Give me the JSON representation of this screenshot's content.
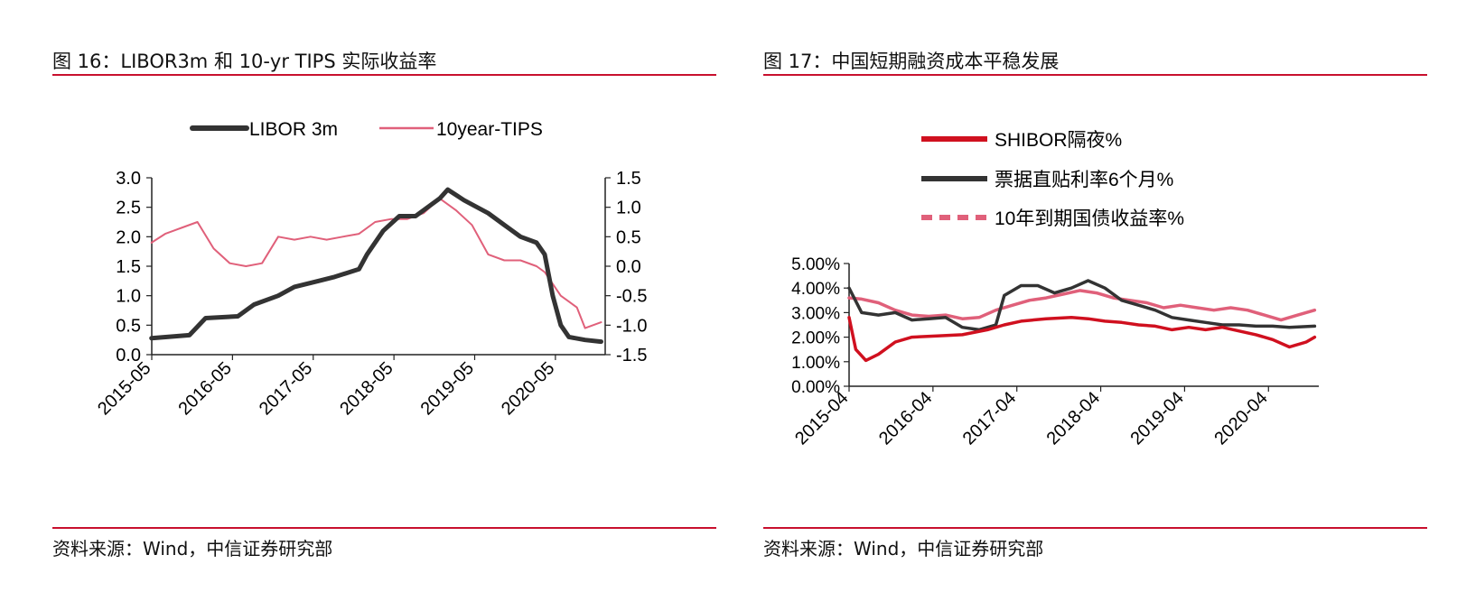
{
  "panels": [
    {
      "title": "图 16：LIBOR3m 和 10-yr TIPS 实际收益率",
      "source": "资料来源：Wind，中信证券研究部"
    },
    {
      "title": "图 17：中国短期融资成本平稳发展",
      "source": "资料来源：Wind，中信证券研究部"
    }
  ],
  "chart_data": [
    {
      "type": "line",
      "title": "",
      "xlabel": "",
      "ylabel": "",
      "x_ticks": [
        "2015-05",
        "2016-05",
        "2017-05",
        "2018-05",
        "2019-05",
        "2020-05"
      ],
      "ylim": [
        0,
        3.0
      ],
      "y_ticks": [
        "3.0",
        "2.5",
        "2.0",
        "1.5",
        "1.0",
        "0.5",
        "0.0"
      ],
      "y2lim": [
        -1.5,
        1.5
      ],
      "y2_ticks": [
        "1.5",
        "1.0",
        "0.5",
        "0.0",
        "-0.5",
        "-1.0",
        "-1.5"
      ],
      "grid": false,
      "legend": "top",
      "series": [
        {
          "name": "LIBOR 3m",
          "axis": "left",
          "color": "#333333",
          "x": [
            2015.33,
            2015.8,
            2016.0,
            2016.4,
            2016.6,
            2016.9,
            2017.1,
            2017.4,
            2017.6,
            2017.9,
            2018.0,
            2018.2,
            2018.4,
            2018.6,
            2018.9,
            2019.0,
            2019.2,
            2019.5,
            2019.7,
            2019.9,
            2020.1,
            2020.2,
            2020.3,
            2020.4,
            2020.5,
            2020.7,
            2020.9
          ],
          "values": [
            0.28,
            0.33,
            0.62,
            0.65,
            0.85,
            1.0,
            1.15,
            1.25,
            1.32,
            1.45,
            1.7,
            2.1,
            2.35,
            2.35,
            2.65,
            2.8,
            2.62,
            2.4,
            2.2,
            2.0,
            1.9,
            1.7,
            1.0,
            0.5,
            0.3,
            0.25,
            0.22
          ]
        },
        {
          "name": "10year-TIPS",
          "axis": "right",
          "color": "#e0607a",
          "x": [
            2015.33,
            2015.5,
            2015.7,
            2015.9,
            2016.1,
            2016.3,
            2016.5,
            2016.7,
            2016.9,
            2017.1,
            2017.3,
            2017.5,
            2017.7,
            2017.9,
            2018.1,
            2018.3,
            2018.5,
            2018.7,
            2018.9,
            2019.1,
            2019.3,
            2019.5,
            2019.7,
            2019.9,
            2020.1,
            2020.2,
            2020.3,
            2020.4,
            2020.5,
            2020.6,
            2020.7,
            2020.9
          ],
          "values": [
            0.4,
            0.55,
            0.65,
            0.75,
            0.3,
            0.05,
            0.0,
            0.05,
            0.5,
            0.45,
            0.5,
            0.45,
            0.5,
            0.55,
            0.75,
            0.8,
            0.8,
            0.9,
            1.15,
            0.95,
            0.7,
            0.2,
            0.1,
            0.1,
            0.0,
            -0.1,
            -0.3,
            -0.5,
            -0.6,
            -0.7,
            -1.05,
            -0.95
          ]
        }
      ]
    },
    {
      "type": "line",
      "title": "",
      "xlabel": "",
      "ylabel": "",
      "x_ticks": [
        "2015-04",
        "2016-04",
        "2017-04",
        "2018-04",
        "2019-04",
        "2020-04"
      ],
      "ylim": [
        0,
        5
      ],
      "y_ticks": [
        "5.00%",
        "4.00%",
        "3.00%",
        "2.00%",
        "1.00%",
        "0.00%"
      ],
      "grid": false,
      "legend": "top",
      "series": [
        {
          "name": "SHIBOR隔夜%",
          "color": "#d0101f",
          "x": [
            2015.25,
            2015.33,
            2015.45,
            2015.6,
            2015.8,
            2016.0,
            2016.3,
            2016.6,
            2016.9,
            2017.1,
            2017.3,
            2017.6,
            2017.9,
            2018.1,
            2018.3,
            2018.5,
            2018.7,
            2018.9,
            2019.1,
            2019.3,
            2019.5,
            2019.7,
            2019.9,
            2020.1,
            2020.3,
            2020.5,
            2020.7,
            2020.8
          ],
          "values": [
            2.8,
            1.5,
            1.05,
            1.3,
            1.8,
            2.0,
            2.05,
            2.1,
            2.3,
            2.5,
            2.65,
            2.75,
            2.8,
            2.75,
            2.65,
            2.6,
            2.5,
            2.45,
            2.3,
            2.4,
            2.3,
            2.4,
            2.25,
            2.1,
            1.9,
            1.6,
            1.8,
            2.0
          ]
        },
        {
          "name": "票据直贴利率6个月%",
          "color": "#333333",
          "x": [
            2015.25,
            2015.4,
            2015.6,
            2015.8,
            2016.0,
            2016.2,
            2016.4,
            2016.6,
            2016.8,
            2017.0,
            2017.1,
            2017.3,
            2017.5,
            2017.7,
            2017.9,
            2018.1,
            2018.3,
            2018.5,
            2018.7,
            2018.9,
            2019.1,
            2019.3,
            2019.5,
            2019.7,
            2019.9,
            2020.1,
            2020.3,
            2020.5,
            2020.8
          ],
          "values": [
            4.0,
            3.0,
            2.9,
            3.0,
            2.7,
            2.75,
            2.8,
            2.4,
            2.3,
            2.5,
            3.7,
            4.1,
            4.1,
            3.8,
            4.0,
            4.3,
            4.0,
            3.5,
            3.3,
            3.1,
            2.8,
            2.7,
            2.6,
            2.5,
            2.5,
            2.45,
            2.45,
            2.4,
            2.45
          ]
        },
        {
          "name": "10年到期国债收益率%",
          "color": "#e0607a",
          "x": [
            2015.25,
            2015.4,
            2015.6,
            2015.8,
            2016.0,
            2016.2,
            2016.4,
            2016.6,
            2016.8,
            2017.0,
            2017.2,
            2017.4,
            2017.6,
            2017.8,
            2018.0,
            2018.2,
            2018.4,
            2018.6,
            2018.8,
            2019.0,
            2019.2,
            2019.4,
            2019.6,
            2019.8,
            2020.0,
            2020.2,
            2020.4,
            2020.6,
            2020.8
          ],
          "values": [
            3.6,
            3.55,
            3.4,
            3.1,
            2.9,
            2.85,
            2.9,
            2.75,
            2.8,
            3.1,
            3.3,
            3.5,
            3.6,
            3.75,
            3.9,
            3.8,
            3.6,
            3.5,
            3.4,
            3.2,
            3.3,
            3.2,
            3.1,
            3.2,
            3.1,
            2.9,
            2.7,
            2.9,
            3.1
          ]
        }
      ]
    }
  ]
}
